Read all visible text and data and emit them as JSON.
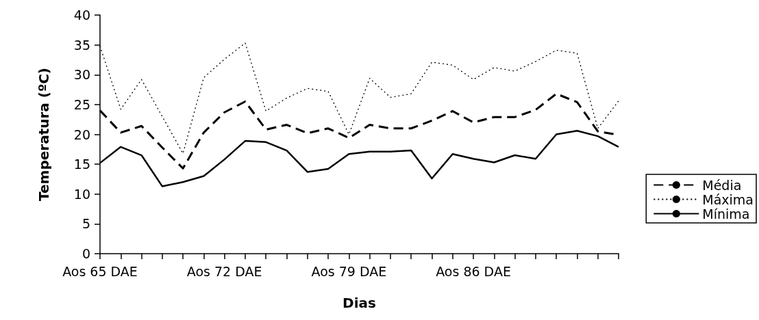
{
  "chart_data": {
    "type": "line",
    "xlabel": "Dias",
    "ylabel": "Temperatura (ºC)",
    "categories": [
      "Aos 65 DAE",
      null,
      null,
      null,
      null,
      null,
      "Aos 72 DAE",
      null,
      null,
      null,
      null,
      null,
      "Aos 79 DAE",
      null,
      null,
      null,
      null,
      null,
      "Aos 86 DAE",
      null,
      null,
      null,
      null,
      null,
      null,
      null
    ],
    "series": [
      {
        "name": "Média",
        "color": "#000000",
        "line_style": "dashed",
        "values": [
          24.0,
          20.3,
          21.4,
          17.8,
          14.3,
          20.3,
          23.7,
          25.5,
          20.8,
          21.6,
          20.2,
          21.0,
          19.4,
          21.6,
          21.0,
          21.0,
          22.3,
          23.9,
          22.0,
          22.9,
          22.9,
          24.1,
          26.8,
          25.4,
          20.5,
          19.9
        ]
      },
      {
        "name": "Máxima",
        "color": "#000000",
        "line_style": "dotted",
        "values": [
          34.8,
          24.2,
          29.2,
          23.0,
          16.8,
          29.5,
          32.6,
          35.3,
          23.9,
          26.1,
          27.7,
          27.2,
          20.0,
          29.4,
          26.2,
          26.8,
          32.1,
          31.6,
          29.2,
          31.2,
          30.6,
          32.2,
          34.1,
          33.6,
          21.0,
          25.6
        ]
      },
      {
        "name": "Mínima",
        "color": "#000000",
        "line_style": "solid",
        "values": [
          15.2,
          17.9,
          16.5,
          11.3,
          12.0,
          13.0,
          15.8,
          18.9,
          18.7,
          17.3,
          13.7,
          14.2,
          16.7,
          17.1,
          17.1,
          17.3,
          12.6,
          16.7,
          15.9,
          15.3,
          16.5,
          15.9,
          20.0,
          20.6,
          19.7,
          17.9
        ]
      }
    ],
    "ylim": [
      0,
      40
    ],
    "yticks": [
      0,
      5,
      10,
      15,
      20,
      25,
      30,
      35,
      40
    ],
    "grid": false,
    "legend": "right",
    "marker": "none"
  }
}
